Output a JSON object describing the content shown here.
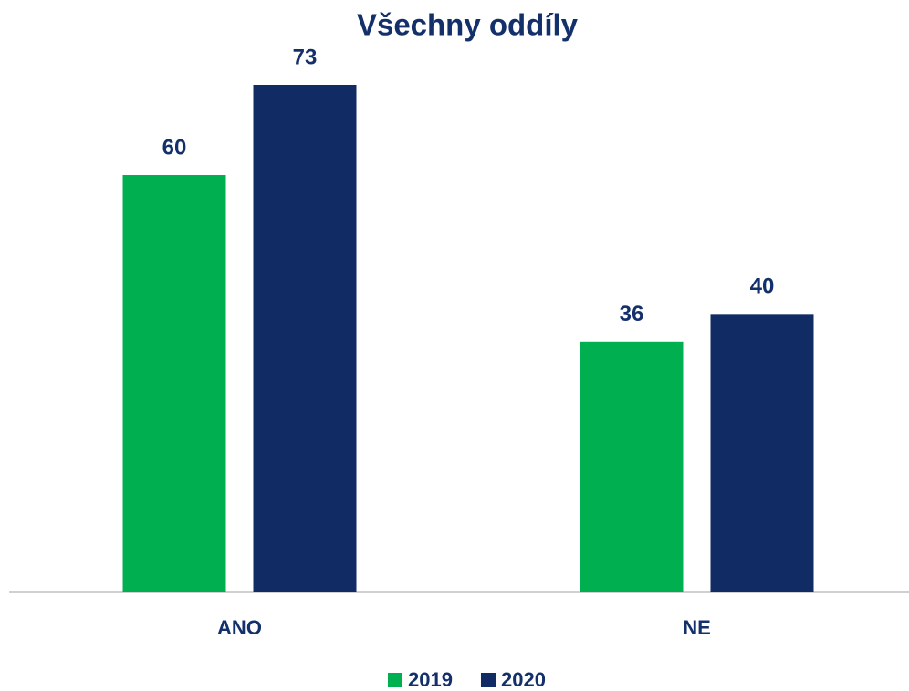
{
  "chart_data": {
    "type": "bar",
    "title": "Všechny oddíly",
    "categories": [
      "ANO",
      "NE"
    ],
    "series": [
      {
        "name": "2019",
        "color": "#00b050",
        "values": [
          60,
          36
        ]
      },
      {
        "name": "2020",
        "color": "#112b64",
        "values": [
          73,
          40
        ]
      }
    ],
    "grid": false
  }
}
